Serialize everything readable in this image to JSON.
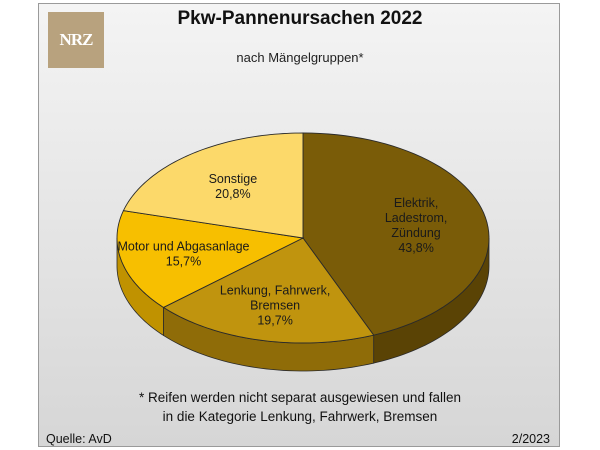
{
  "brand": {
    "logo_text": "NRZ"
  },
  "footnote": {
    "line1": "* Reifen werden nicht separat ausgewiesen und fallen",
    "line2": "in die Kategorie Lenkung, Fahrwerk, Bremsen"
  },
  "source": "Quelle: AvD",
  "date": "2/2023",
  "chart_data": {
    "type": "pie",
    "title": "Pkw-Pannenursachen 2022",
    "subtitle": "nach Mängelgruppen*",
    "unit": "%",
    "slices": [
      {
        "label": [
          "Elektrik,",
          "Ladestrom,",
          "Zündung"
        ],
        "value": 43.8,
        "value_label": "43,8%",
        "color": "#7a5c08",
        "side_color": "#5a4305"
      },
      {
        "label": [
          "Lenkung, Fahrwerk,",
          "Bremsen"
        ],
        "value": 19.7,
        "value_label": "19,7%",
        "color": "#c0940e",
        "side_color": "#8f6c08"
      },
      {
        "label": [
          "Motor und Abgasanlage"
        ],
        "value": 15.7,
        "value_label": "15,7%",
        "color": "#f7bf00",
        "side_color": "#c09200"
      },
      {
        "label": [
          "Sonstige"
        ],
        "value": 20.8,
        "value_label": "20,8%",
        "color": "#fcd96a",
        "side_color": "#d2b04a"
      }
    ]
  }
}
